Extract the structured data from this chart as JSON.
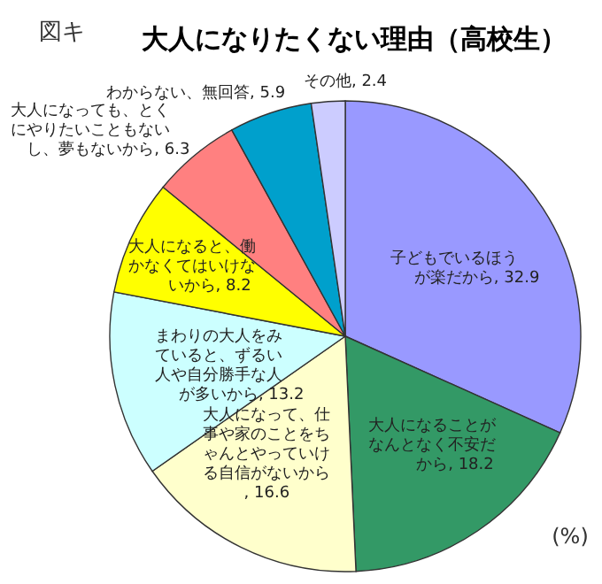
{
  "chart_data": {
    "type": "pie",
    "title": "大人になりたくない理由（高校生）",
    "categories": [
      "子どもでいるほうが楽だから",
      "大人になることがなんとなく不安だから",
      "大人になって、仕事や家のことをちゃんとやっていける自信がないから",
      "まわりの大人をみていると、ずるい人や自分勝手な人が多いから",
      "大人になると、働かなくてはいけないから",
      "大人になっても、とくにやりたいこともないし、夢もないから",
      "わからない、無回答",
      "その他"
    ],
    "values": [
      32.9,
      18.2,
      16.6,
      13.2,
      8.2,
      6.3,
      5.9,
      2.4
    ],
    "colors": [
      "#9999ff",
      "#339966",
      "#ffffcc",
      "#ccffff",
      "#ffff00",
      "#ff8080",
      "#00a0cc",
      "#ccccff"
    ],
    "value_labels": [
      ", 32.9",
      ", 18.2",
      ", 16.6",
      ", 13.2",
      ", 8.2",
      ", 6.3",
      ", 5.9",
      ", 2.4"
    ],
    "annotations": [
      "図キ",
      "(%)"
    ]
  }
}
